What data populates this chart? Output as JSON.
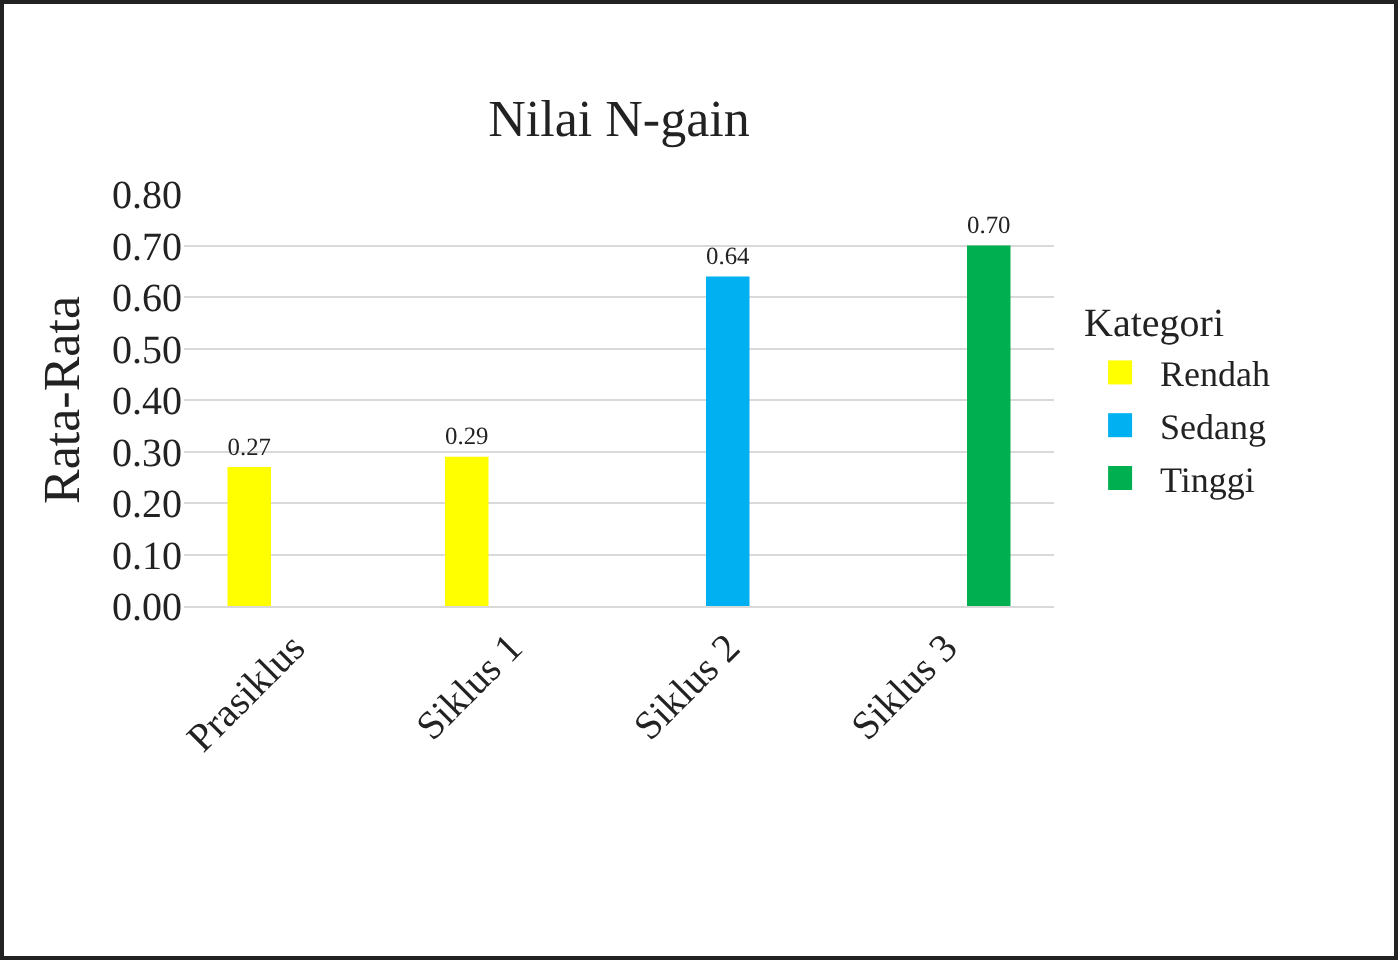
{
  "chart_data": {
    "type": "bar",
    "title": "Nilai N-gain",
    "ylabel": "Rata-Rata",
    "legend_title": "Kategori",
    "categories": [
      "Prasiklus",
      "Siklus 1",
      "Siklus 2",
      "Siklus 3"
    ],
    "series": [
      {
        "name": "Rendah",
        "color": "#ffff00",
        "values": [
          0.27,
          0.29,
          null,
          null
        ],
        "value_labels": [
          "0.27",
          "0.29",
          null,
          null
        ]
      },
      {
        "name": "Sedang",
        "color": "#00b0f0",
        "values": [
          null,
          null,
          0.64,
          null
        ],
        "value_labels": [
          null,
          null,
          "0.64",
          null
        ]
      },
      {
        "name": "Tinggi",
        "color": "#00b050",
        "values": [
          null,
          null,
          null,
          0.7
        ],
        "value_labels": [
          null,
          null,
          null,
          "0.70"
        ]
      }
    ],
    "ylim": [
      0,
      0.8
    ],
    "yticks": [
      {
        "value": 0,
        "label": "0.00"
      },
      {
        "value": 0.1,
        "label": "0.10"
      },
      {
        "value": 0.2,
        "label": "0.20"
      },
      {
        "value": 0.3,
        "label": "0.30"
      },
      {
        "value": 0.4,
        "label": "0.40"
      },
      {
        "value": 0.5,
        "label": "0.50"
      },
      {
        "value": 0.6,
        "label": "0.60"
      },
      {
        "value": 0.7,
        "label": "0.70"
      },
      {
        "value": 0.8,
        "label": "0.80"
      }
    ],
    "grid": "y",
    "legend": "right"
  }
}
